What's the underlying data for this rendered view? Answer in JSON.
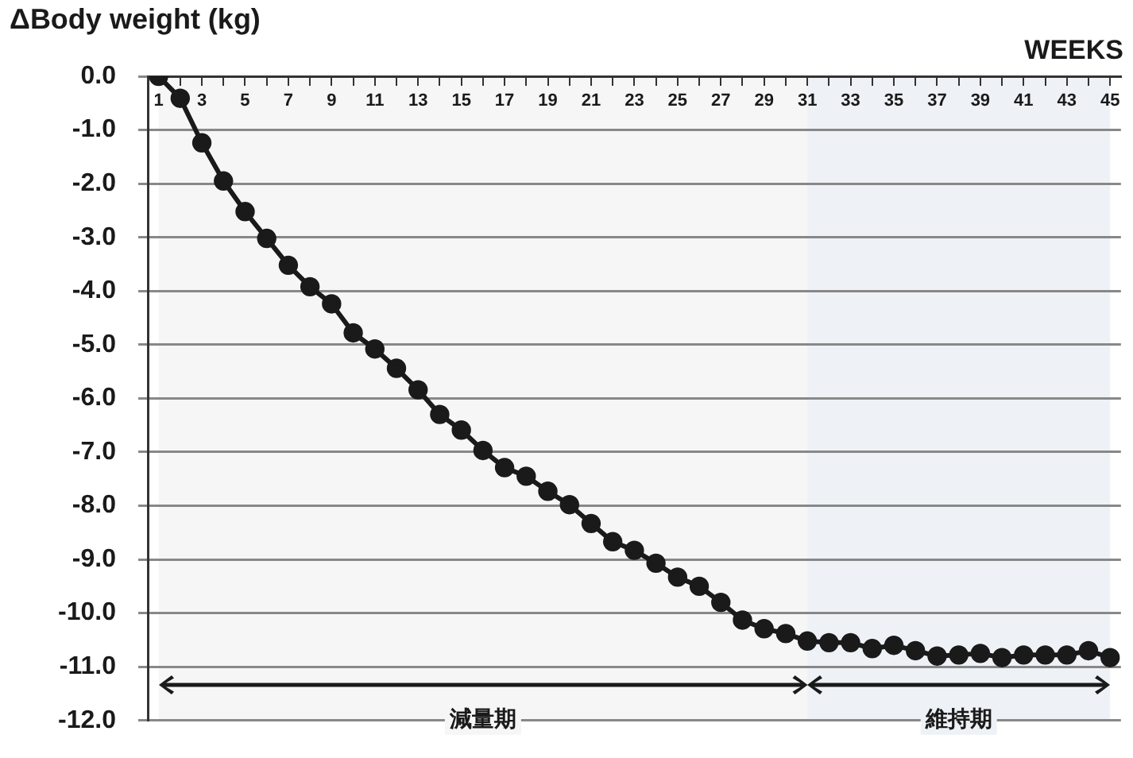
{
  "chart_data": {
    "type": "line",
    "title": "ΔBody weight (kg)",
    "xlabel": "WEEKS",
    "x": [
      1,
      2,
      3,
      4,
      5,
      6,
      7,
      8,
      9,
      10,
      11,
      12,
      13,
      14,
      15,
      16,
      17,
      18,
      19,
      20,
      21,
      22,
      23,
      24,
      25,
      26,
      27,
      28,
      29,
      30,
      31,
      32,
      33,
      34,
      35,
      36,
      37,
      38,
      39,
      40,
      41,
      42,
      43,
      44,
      45
    ],
    "series": [
      {
        "color": "#1a1a1a",
        "values": [
          0,
          -0.41,
          -1.24,
          -1.95,
          -2.52,
          -3.02,
          -3.52,
          -3.92,
          -4.24,
          -4.78,
          -5.08,
          -5.44,
          -5.84,
          -6.3,
          -6.59,
          -6.97,
          -7.29,
          -7.45,
          -7.73,
          -7.98,
          -8.33,
          -8.67,
          -8.83,
          -9.07,
          -9.33,
          -9.5,
          -9.8,
          -10.13,
          -10.29,
          -10.38,
          -10.52,
          -10.55,
          -10.55,
          -10.66,
          -10.6,
          -10.7,
          -10.8,
          -10.78,
          -10.75,
          -10.83,
          -10.78,
          -10.78,
          -10.78,
          -10.7,
          -10.83
        ]
      }
    ],
    "xlim": [
      0.5,
      45.5
    ],
    "xticks": [
      1,
      {
        "value": 2,
        "label": null
      },
      3,
      {
        "value": 4,
        "label": null
      },
      5,
      {
        "value": 6,
        "label": null
      },
      7,
      {
        "value": 8,
        "label": null
      },
      9,
      {
        "value": 10,
        "label": null
      },
      11,
      {
        "value": 12,
        "label": null
      },
      13,
      {
        "value": 14,
        "label": null
      },
      15,
      {
        "value": 16,
        "label": null
      },
      17,
      {
        "value": 18,
        "label": null
      },
      19,
      {
        "value": 20,
        "label": null
      },
      21,
      {
        "value": 22,
        "label": null
      },
      23,
      {
        "value": 24,
        "label": null
      },
      25,
      {
        "value": 26,
        "label": null
      },
      27,
      {
        "value": 28,
        "label": null
      },
      29,
      {
        "value": 30,
        "label": null
      },
      31,
      {
        "value": 32,
        "label": null
      },
      33,
      {
        "value": 34,
        "label": null
      },
      35,
      {
        "value": 36,
        "label": null
      },
      37,
      {
        "value": 38,
        "label": null
      },
      39,
      {
        "value": 40,
        "label": null
      },
      41,
      {
        "value": 42,
        "label": null
      },
      43,
      {
        "value": 44,
        "label": null
      },
      45
    ],
    "ylim": [
      -12,
      0
    ],
    "yticks": [
      {
        "value": 0,
        "label": "0.0"
      },
      {
        "value": -1,
        "label": "-1.0"
      },
      {
        "value": -2,
        "label": "-2.0"
      },
      {
        "value": -3,
        "label": "-3.0"
      },
      {
        "value": -4,
        "label": "-4.0"
      },
      {
        "value": -5,
        "label": "-5.0"
      },
      {
        "value": -6,
        "label": "-6.0"
      },
      {
        "value": -7,
        "label": "-7.0"
      },
      {
        "value": -8,
        "label": "-8.0"
      },
      {
        "value": -9,
        "label": "-9.0"
      },
      {
        "value": -10,
        "label": "-10.0"
      },
      {
        "value": -11,
        "label": "-11.0"
      },
      {
        "value": -12,
        "label": "-12.0"
      }
    ],
    "bands": [
      {
        "axis": "x",
        "from": 1,
        "to": 31,
        "label": "減量期",
        "color": "#f6f6f6"
      },
      {
        "axis": "x",
        "from": 31,
        "to": 45,
        "label": "維持期",
        "color": "#eef2f6"
      }
    ],
    "grid": "y",
    "legend": false,
    "marker": "circle",
    "line_style": "solid"
  }
}
